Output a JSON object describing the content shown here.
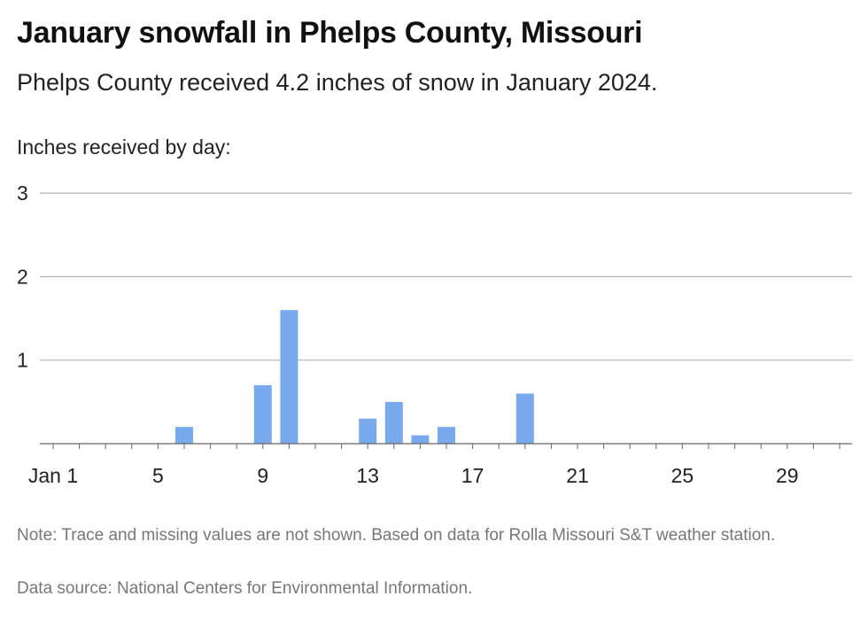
{
  "header": {
    "title": "January snowfall in Phelps County, Missouri",
    "subtitle": "Phelps County received 4.2 inches of snow in January 2024."
  },
  "chart_data": {
    "type": "bar",
    "title": "January snowfall in Phelps County, Missouri",
    "subtitle": "Phelps County received 4.2 inches of snow in January 2024.",
    "ylabel": "Inches received by day:",
    "xlabel": "",
    "ylim": [
      0,
      3
    ],
    "yticks": [
      1,
      2,
      3
    ],
    "xticks": [
      {
        "day": 1,
        "label": "Jan 1"
      },
      {
        "day": 5,
        "label": "5"
      },
      {
        "day": 9,
        "label": "9"
      },
      {
        "day": 13,
        "label": "13"
      },
      {
        "day": 17,
        "label": "17"
      },
      {
        "day": 21,
        "label": "21"
      },
      {
        "day": 25,
        "label": "25"
      },
      {
        "day": 29,
        "label": "29"
      }
    ],
    "x": [
      6,
      9,
      10,
      13,
      14,
      15,
      16,
      19
    ],
    "values": [
      0.2,
      0.7,
      1.6,
      0.3,
      0.5,
      0.1,
      0.2,
      0.6
    ],
    "grid": true,
    "bar_color": "#7aaaee"
  },
  "footer": {
    "note": "Note: Trace and missing values are not shown. Based on data for Rolla Missouri S&T weather station.",
    "source": "Data source: National Centers for Environmental Information."
  }
}
